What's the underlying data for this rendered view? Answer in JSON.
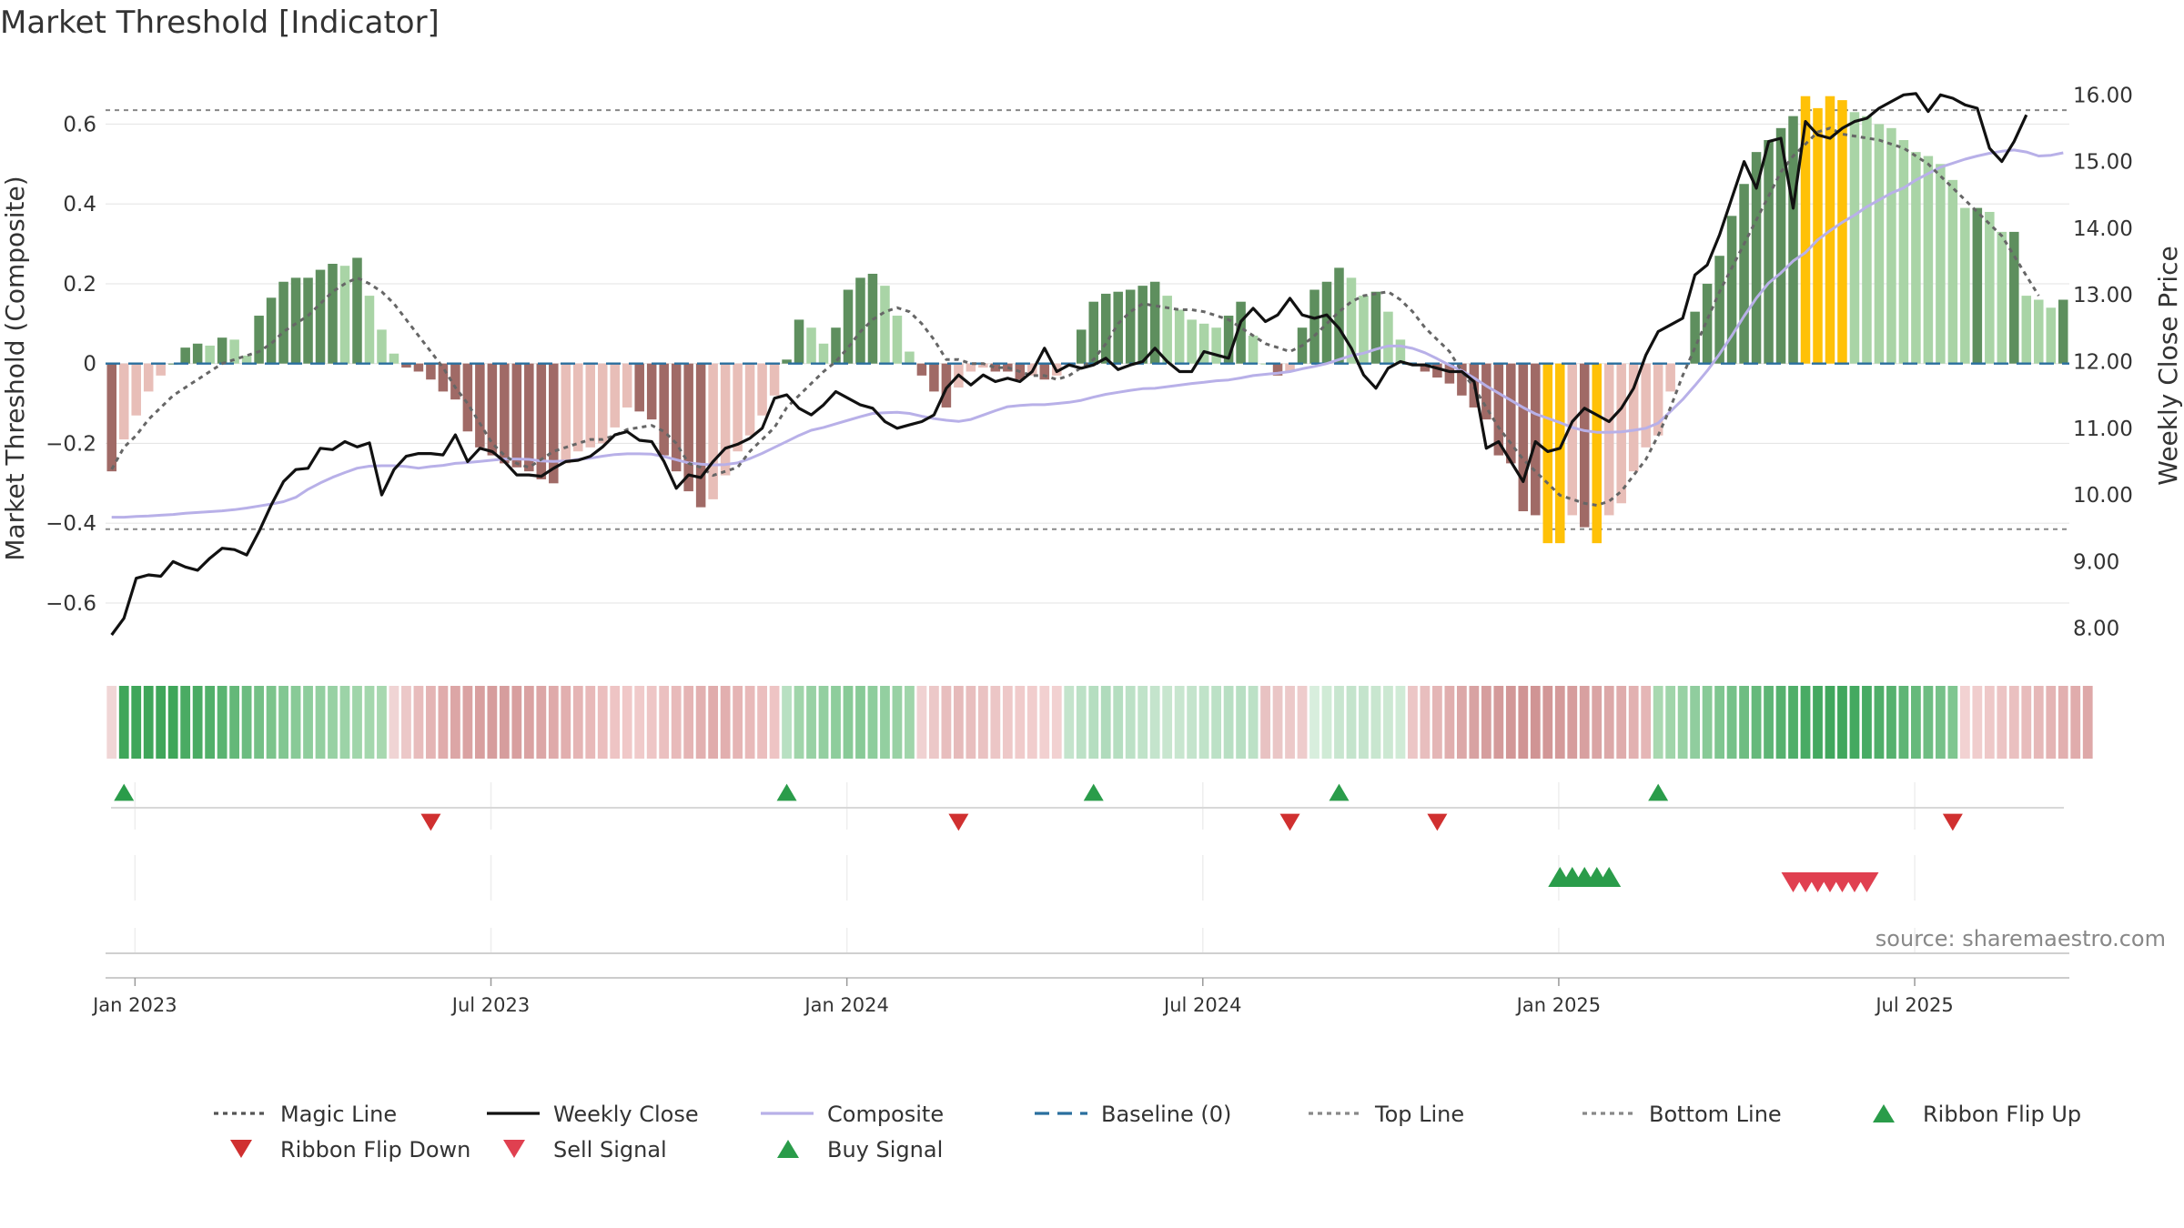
{
  "chart_data": {
    "type": "bar",
    "title": "Market Threshold [Indicator]",
    "ylabel": "Market Threshold (Composite)",
    "ylabel_right": "Weekly Close Price",
    "ylim": [
      -0.73,
      0.74
    ],
    "ylim_right": [
      7.6,
      16.4
    ],
    "yticks": [
      "−0.6",
      "−0.4",
      "−0.2",
      "0",
      "0.2",
      "0.4",
      "0.6"
    ],
    "ytick_values": [
      -0.6,
      -0.4,
      -0.2,
      0,
      0.2,
      0.4,
      0.6
    ],
    "yticks_right": [
      "8.00",
      "9.00",
      "10.00",
      "11.00",
      "12.00",
      "13.00",
      "14.00",
      "15.00",
      "16.00"
    ],
    "ytick_right_values": [
      8,
      9,
      10,
      11,
      12,
      13,
      14,
      15,
      16
    ],
    "x_dates": [
      "Jan 2023",
      "Jul 2023",
      "Jan 2024",
      "Jul 2024",
      "Jan 2025",
      "Jul 2025"
    ],
    "x_date_weeks": [
      2.4,
      31.4,
      60.4,
      89.4,
      118.4,
      147.4
    ],
    "top_line": 0.635,
    "bottom_line": -0.415,
    "composite_bars": [
      -0.27,
      -0.19,
      -0.13,
      -0.07,
      -0.03,
      0.0,
      0.04,
      0.05,
      0.045,
      0.065,
      0.06,
      0.02,
      0.12,
      0.165,
      0.205,
      0.215,
      0.215,
      0.235,
      0.25,
      0.245,
      0.265,
      0.17,
      0.085,
      0.025,
      -0.01,
      -0.02,
      -0.04,
      -0.07,
      -0.09,
      -0.17,
      -0.21,
      -0.23,
      -0.25,
      -0.26,
      -0.27,
      -0.29,
      -0.3,
      -0.25,
      -0.22,
      -0.21,
      -0.2,
      -0.16,
      -0.11,
      -0.12,
      -0.14,
      -0.23,
      -0.27,
      -0.32,
      -0.36,
      -0.34,
      -0.28,
      -0.22,
      -0.18,
      -0.13,
      -0.08,
      0.01,
      0.11,
      0.09,
      0.05,
      0.09,
      0.185,
      0.215,
      0.225,
      0.195,
      0.12,
      0.03,
      -0.03,
      -0.07,
      -0.11,
      -0.06,
      -0.02,
      -0.01,
      -0.02,
      -0.02,
      -0.04,
      -0.03,
      -0.04,
      -0.03,
      -0.005,
      0.085,
      0.155,
      0.175,
      0.18,
      0.185,
      0.195,
      0.205,
      0.17,
      0.135,
      0.11,
      0.1,
      0.09,
      0.12,
      0.155,
      0.07,
      0.0,
      -0.03,
      -0.02,
      0.09,
      0.185,
      0.205,
      0.24,
      0.215,
      0.17,
      0.18,
      0.13,
      0.06,
      -0.0,
      -0.02,
      -0.035,
      -0.05,
      -0.08,
      -0.11,
      -0.14,
      -0.23,
      -0.25,
      -0.37,
      -0.38,
      -0.45,
      -0.45,
      -0.38,
      -0.41,
      -0.45,
      -0.38,
      -0.35,
      -0.27,
      -0.21,
      -0.18,
      -0.07,
      -0.0,
      0.13,
      0.2,
      0.27,
      0.37,
      0.45,
      0.53,
      0.56,
      0.59,
      0.62,
      0.67,
      0.64,
      0.67,
      0.66,
      0.63,
      0.62,
      0.6,
      0.59,
      0.56,
      0.53,
      0.52,
      0.5,
      0.46,
      0.39,
      0.39,
      0.38,
      0.33,
      0.33,
      0.17,
      0.16,
      0.14,
      0.16
    ],
    "magic_line": [
      -0.265,
      -0.21,
      -0.18,
      -0.14,
      -0.11,
      -0.08,
      -0.06,
      -0.04,
      -0.02,
      0.0,
      0.01,
      0.02,
      0.03,
      0.05,
      0.08,
      0.1,
      0.12,
      0.15,
      0.18,
      0.2,
      0.215,
      0.2,
      0.18,
      0.15,
      0.11,
      0.07,
      0.03,
      -0.01,
      -0.06,
      -0.1,
      -0.15,
      -0.2,
      -0.23,
      -0.25,
      -0.26,
      -0.24,
      -0.22,
      -0.21,
      -0.2,
      -0.19,
      -0.19,
      -0.18,
      -0.165,
      -0.16,
      -0.155,
      -0.17,
      -0.2,
      -0.25,
      -0.26,
      -0.28,
      -0.27,
      -0.26,
      -0.22,
      -0.19,
      -0.16,
      -0.11,
      -0.08,
      -0.05,
      -0.02,
      0.005,
      0.04,
      0.08,
      0.11,
      0.13,
      0.14,
      0.13,
      0.1,
      0.06,
      0.01,
      0.01,
      0.0,
      0.0,
      -0.01,
      -0.01,
      -0.02,
      -0.03,
      -0.03,
      -0.04,
      -0.03,
      -0.01,
      0.01,
      0.05,
      0.1,
      0.13,
      0.15,
      0.145,
      0.14,
      0.135,
      0.135,
      0.13,
      0.12,
      0.11,
      0.09,
      0.07,
      0.05,
      0.04,
      0.03,
      0.045,
      0.07,
      0.1,
      0.13,
      0.155,
      0.17,
      0.175,
      0.18,
      0.16,
      0.13,
      0.09,
      0.06,
      0.03,
      -0.02,
      -0.06,
      -0.11,
      -0.16,
      -0.2,
      -0.24,
      -0.27,
      -0.3,
      -0.33,
      -0.34,
      -0.35,
      -0.355,
      -0.345,
      -0.32,
      -0.28,
      -0.24,
      -0.18,
      -0.11,
      -0.03,
      0.04,
      0.11,
      0.18,
      0.24,
      0.3,
      0.36,
      0.42,
      0.48,
      0.52,
      0.55,
      0.58,
      0.59,
      0.575,
      0.57,
      0.565,
      0.56,
      0.55,
      0.54,
      0.52,
      0.5,
      0.47,
      0.44,
      0.41,
      0.38,
      0.35,
      0.32,
      0.27,
      0.22,
      0.17
    ],
    "composite_line": [
      -0.385,
      -0.385,
      -0.383,
      -0.382,
      -0.38,
      -0.378,
      -0.375,
      -0.373,
      -0.371,
      -0.369,
      -0.366,
      -0.362,
      -0.357,
      -0.352,
      -0.346,
      -0.335,
      -0.315,
      -0.299,
      -0.285,
      -0.273,
      -0.262,
      -0.257,
      -0.256,
      -0.256,
      -0.258,
      -0.262,
      -0.258,
      -0.255,
      -0.25,
      -0.248,
      -0.245,
      -0.242,
      -0.239,
      -0.239,
      -0.24,
      -0.244,
      -0.245,
      -0.244,
      -0.24,
      -0.237,
      -0.232,
      -0.228,
      -0.226,
      -0.226,
      -0.227,
      -0.233,
      -0.241,
      -0.249,
      -0.252,
      -0.254,
      -0.253,
      -0.249,
      -0.238,
      -0.225,
      -0.21,
      -0.195,
      -0.18,
      -0.167,
      -0.16,
      -0.151,
      -0.142,
      -0.133,
      -0.125,
      -0.123,
      -0.122,
      -0.125,
      -0.132,
      -0.138,
      -0.142,
      -0.145,
      -0.14,
      -0.129,
      -0.118,
      -0.108,
      -0.105,
      -0.103,
      -0.103,
      -0.1,
      -0.097,
      -0.092,
      -0.084,
      -0.077,
      -0.072,
      -0.067,
      -0.063,
      -0.062,
      -0.058,
      -0.054,
      -0.05,
      -0.047,
      -0.043,
      -0.041,
      -0.036,
      -0.03,
      -0.027,
      -0.024,
      -0.02,
      -0.013,
      -0.007,
      0.0,
      0.01,
      0.02,
      0.026,
      0.036,
      0.044,
      0.044,
      0.038,
      0.027,
      0.012,
      -0.004,
      -0.018,
      -0.036,
      -0.056,
      -0.074,
      -0.092,
      -0.11,
      -0.126,
      -0.137,
      -0.148,
      -0.16,
      -0.168,
      -0.172,
      -0.172,
      -0.171,
      -0.167,
      -0.162,
      -0.149,
      -0.12,
      -0.09,
      -0.055,
      -0.018,
      0.024,
      0.07,
      0.119,
      0.164,
      0.202,
      0.227,
      0.257,
      0.278,
      0.31,
      0.333,
      0.354,
      0.372,
      0.393,
      0.41,
      0.427,
      0.44,
      0.46,
      0.476,
      0.492,
      0.502,
      0.512,
      0.52,
      0.527,
      0.532,
      0.535,
      0.53,
      0.52,
      0.522,
      0.528
    ],
    "weekly_close": [
      7.9,
      8.15,
      8.75,
      8.8,
      8.78,
      9.0,
      8.92,
      8.87,
      9.05,
      9.2,
      9.18,
      9.1,
      9.45,
      9.85,
      10.2,
      10.38,
      10.4,
      10.7,
      10.68,
      10.8,
      10.72,
      10.78,
      10.0,
      10.38,
      10.58,
      10.62,
      10.62,
      10.6,
      10.9,
      10.5,
      10.7,
      10.65,
      10.5,
      10.3,
      10.3,
      10.28,
      10.4,
      10.5,
      10.52,
      10.58,
      10.72,
      10.9,
      10.95,
      10.82,
      10.8,
      10.5,
      10.1,
      10.3,
      10.26,
      10.5,
      10.7,
      10.76,
      10.85,
      11.0,
      11.45,
      11.5,
      11.3,
      11.2,
      11.35,
      11.55,
      11.45,
      11.35,
      11.3,
      11.1,
      11.0,
      11.05,
      11.1,
      11.2,
      11.6,
      11.8,
      11.65,
      11.8,
      11.7,
      11.75,
      11.7,
      11.85,
      12.2,
      11.85,
      11.95,
      11.9,
      11.95,
      12.05,
      11.88,
      11.95,
      12.0,
      12.2,
      12.0,
      11.85,
      11.85,
      12.15,
      12.1,
      12.05,
      12.6,
      12.8,
      12.6,
      12.7,
      12.95,
      12.7,
      12.65,
      12.7,
      12.5,
      12.2,
      11.8,
      11.6,
      11.9,
      12.0,
      11.95,
      11.95,
      11.9,
      11.85,
      11.85,
      11.7,
      10.7,
      10.8,
      10.5,
      10.2,
      10.8,
      10.65,
      10.7,
      11.1,
      11.3,
      11.2,
      11.1,
      11.3,
      11.6,
      12.1,
      12.45,
      12.55,
      12.65,
      13.3,
      13.45,
      13.9,
      14.45,
      15.0,
      14.6,
      15.3,
      15.35,
      14.3,
      15.6,
      15.4,
      15.35,
      15.5,
      15.6,
      15.65,
      15.8,
      15.9,
      16.0,
      16.02,
      15.75,
      16.0,
      15.95,
      15.85,
      15.8,
      15.2,
      15.0,
      15.3,
      15.7
    ],
    "ribbon_colors": [
      "#f0d6d6",
      "#3fa65a",
      "#3fa65a",
      "#3fa65a",
      "#3fa65a",
      "#3fa65a",
      "#4aab63",
      "#4aab63",
      "#52b06a",
      "#5ab471",
      "#64b879",
      "#6cbc80",
      "#74c086",
      "#7cc48c",
      "#82c792",
      "#88ca97",
      "#8ecd9c",
      "#93cfa0",
      "#98d1a4",
      "#9cd3a7",
      "#a0d5aa",
      "#a4d7ad",
      "#a8d8b0",
      "#f0d4d4",
      "#ecc8c8",
      "#e8bcbc",
      "#e4b4b4",
      "#e0acac",
      "#dca6a6",
      "#daa2a2",
      "#d89f9f",
      "#d69d9d",
      "#d69d9d",
      "#d89f9f",
      "#daa2a2",
      "#dca6a6",
      "#dfaaaa",
      "#e2afaf",
      "#e5b4b4",
      "#e8b9b9",
      "#ebbebe",
      "#eec4c4",
      "#f0c8c8",
      "#f0caca",
      "#eec6c6",
      "#ebc0c0",
      "#e8baba",
      "#e5b4b4",
      "#e2b0b0",
      "#e0acac",
      "#e2afaf",
      "#e5b4b4",
      "#e8b9b9",
      "#ebbebe",
      "#eec4c4",
      "#b8e0c2",
      "#a0d5aa",
      "#98d1a4",
      "#93cfa0",
      "#8ecd9c",
      "#88ca97",
      "#88ca97",
      "#8ecd9c",
      "#93cfa0",
      "#98d1a4",
      "#a0d5aa",
      "#f0d2d2",
      "#ecc8c8",
      "#e8bebe",
      "#e6baba",
      "#e8bebe",
      "#eac2c2",
      "#ecc6c6",
      "#eec8c8",
      "#f0cbcb",
      "#f1cdcd",
      "#f2d0d0",
      "#f2d1d1",
      "#c4e4cc",
      "#bce1c6",
      "#b5dec0",
      "#b0dbbc",
      "#b5dec0",
      "#bce1c6",
      "#c0e3c9",
      "#c4e4cc",
      "#c8e6cf",
      "#c8e6cf",
      "#c4e4cc",
      "#c0e3c9",
      "#bce1c6",
      "#b8dfc3",
      "#b8dfc3",
      "#bce1c6",
      "#e8c2c2",
      "#eac6c6",
      "#ecc9c9",
      "#eecccc",
      "#d8eedd",
      "#d0ebd6",
      "#c8e6cf",
      "#c4e4cc",
      "#c4e4cc",
      "#c8e6cf",
      "#cce8d2",
      "#d0ebd6",
      "#ecc6c6",
      "#e8bebe",
      "#e4b6b6",
      "#e0aeae",
      "#dca8a8",
      "#d8a2a2",
      "#d69e9e",
      "#d49a9a",
      "#d29797",
      "#d09494",
      "#d09494",
      "#d29797",
      "#d49a9a",
      "#d69d9d",
      "#d8a0a0",
      "#daa4a4",
      "#dca8a8",
      "#dfacac",
      "#e2b1b1",
      "#e5b6b6",
      "#a8d8b0",
      "#a0d5aa",
      "#98d1a4",
      "#90cd9e",
      "#88ca97",
      "#7fc690",
      "#76c189",
      "#6ebd82",
      "#66b97b",
      "#5eb575",
      "#56b16e",
      "#4fae69",
      "#48ab64",
      "#44a960",
      "#41a75d",
      "#41a75d",
      "#44a960",
      "#48ab64",
      "#4fae69",
      "#56b16e",
      "#5eb575",
      "#66b97b",
      "#6ebd82",
      "#76c189",
      "#7fc690",
      "#f2d2d2",
      "#f0cdcd",
      "#eec8c8",
      "#ecc4c4",
      "#eac0c0",
      "#e8bcbc",
      "#e6b8b8",
      "#e4b4b4",
      "#e2b0b0",
      "#e0acac",
      "#dea8a8"
    ],
    "markers": {
      "ribbon_flip_up_weeks": [
        1,
        55,
        80,
        100,
        126
      ],
      "ribbon_flip_down_weeks": [
        26,
        69,
        96,
        108,
        150
      ],
      "buy_signal_weeks": [
        118,
        119,
        120,
        121,
        122
      ],
      "sell_signal_weeks": [
        137,
        138,
        139,
        140,
        141,
        142,
        143
      ]
    },
    "source": "source: sharemaestro.com",
    "legend": [
      {
        "label": "Magic Line",
        "style": "dotted",
        "color": "#555555"
      },
      {
        "label": "Weekly Close",
        "style": "solid",
        "color": "#111111"
      },
      {
        "label": "Composite",
        "style": "solid",
        "color": "#b8b0e8"
      },
      {
        "label": "Baseline (0)",
        "style": "dashed",
        "color": "#2a6f9e"
      },
      {
        "label": "Top Line",
        "style": "dotted",
        "color": "#888888"
      },
      {
        "label": "Bottom Line",
        "style": "dotted",
        "color": "#888888"
      },
      {
        "label": "Ribbon Flip Up",
        "style": "triangle-up",
        "color": "#2a9c4a"
      },
      {
        "label": "Ribbon Flip Down",
        "style": "triangle-down",
        "color": "#d03030"
      },
      {
        "label": "Sell Signal",
        "style": "triangle-down",
        "color": "#e04050"
      },
      {
        "label": "Buy Signal",
        "style": "triangle-up",
        "color": "#2a9c4a"
      }
    ],
    "colors": {
      "pos_strong": "#5e8f5e",
      "pos_weak": "#a9d4a6",
      "neg_strong": "#a06a66",
      "neg_weak": "#e8beb8",
      "extreme": "#ffc107",
      "grid": "#e6e6e6"
    }
  }
}
